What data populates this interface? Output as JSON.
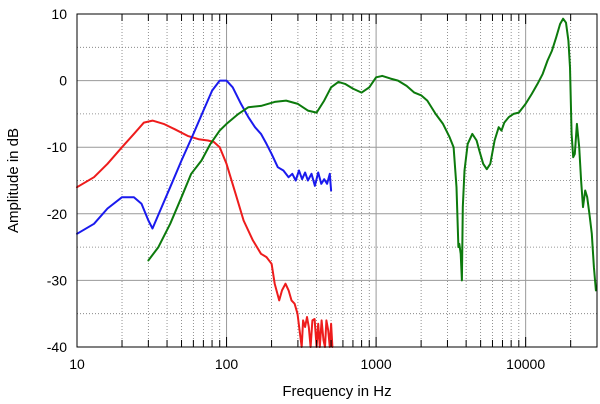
{
  "chart_data": {
    "type": "line",
    "xlabel": "Frequency in Hz",
    "ylabel": "Amplitude in dB",
    "xscale": "log",
    "xlim": [
      10,
      30000
    ],
    "ylim": [
      -40,
      10
    ],
    "grid": true,
    "x_tick_labels": [
      "10",
      "100",
      "1000",
      "10000"
    ],
    "x_tick_values": [
      10,
      100,
      1000,
      10000
    ],
    "y_tick_labels": [
      "10",
      "0",
      "-10",
      "-20",
      "-30",
      "-40"
    ],
    "y_tick_values": [
      10,
      0,
      -10,
      -20,
      -30,
      -40
    ],
    "series": [
      {
        "color": "#ee1c1c",
        "points": [
          [
            10,
            -16
          ],
          [
            13,
            -14.5
          ],
          [
            16,
            -12.5
          ],
          [
            20,
            -10
          ],
          [
            24,
            -8
          ],
          [
            28,
            -6.3
          ],
          [
            32,
            -6
          ],
          [
            38,
            -6.5
          ],
          [
            45,
            -7.3
          ],
          [
            55,
            -8.3
          ],
          [
            65,
            -8.8
          ],
          [
            75,
            -9
          ],
          [
            82,
            -9.2
          ],
          [
            90,
            -10
          ],
          [
            100,
            -12.5
          ],
          [
            115,
            -17
          ],
          [
            130,
            -21
          ],
          [
            150,
            -24
          ],
          [
            170,
            -26
          ],
          [
            185,
            -26.5
          ],
          [
            200,
            -27.5
          ],
          [
            210,
            -30.5
          ],
          [
            225,
            -33
          ],
          [
            235,
            -31.5
          ],
          [
            248,
            -30.5
          ],
          [
            260,
            -31.5
          ],
          [
            272,
            -33
          ],
          [
            285,
            -33.5
          ],
          [
            298,
            -35
          ],
          [
            310,
            -38
          ],
          [
            318,
            -40
          ],
          [
            325,
            -36
          ],
          [
            335,
            -37
          ],
          [
            345,
            -35.5
          ],
          [
            355,
            -37
          ],
          [
            365,
            -40
          ],
          [
            375,
            -36
          ],
          [
            388,
            -35.8
          ],
          [
            400,
            -40
          ],
          [
            410,
            -36.5
          ],
          [
            420,
            -40
          ],
          [
            432,
            -36
          ],
          [
            445,
            -39
          ],
          [
            455,
            -40
          ],
          [
            465,
            -36
          ],
          [
            478,
            -37.5
          ],
          [
            490,
            -40
          ],
          [
            500,
            -36.5
          ],
          [
            510,
            -40
          ]
        ]
      },
      {
        "color": "#1a1aee",
        "points": [
          [
            10,
            -23
          ],
          [
            13,
            -21.5
          ],
          [
            16,
            -19.2
          ],
          [
            20,
            -17.5
          ],
          [
            24,
            -17.5
          ],
          [
            27,
            -18.5
          ],
          [
            30,
            -21
          ],
          [
            32,
            -22.2
          ],
          [
            36,
            -19.5
          ],
          [
            42,
            -16
          ],
          [
            50,
            -12
          ],
          [
            60,
            -8
          ],
          [
            70,
            -4.5
          ],
          [
            80,
            -1.5
          ],
          [
            90,
            0
          ],
          [
            100,
            0
          ],
          [
            110,
            -1
          ],
          [
            125,
            -3.5
          ],
          [
            140,
            -5.5
          ],
          [
            155,
            -7
          ],
          [
            170,
            -8
          ],
          [
            185,
            -9.5
          ],
          [
            200,
            -11
          ],
          [
            220,
            -13
          ],
          [
            240,
            -13.5
          ],
          [
            260,
            -14.5
          ],
          [
            275,
            -14
          ],
          [
            290,
            -15
          ],
          [
            305,
            -13.5
          ],
          [
            320,
            -14.8
          ],
          [
            335,
            -13.8
          ],
          [
            350,
            -15
          ],
          [
            370,
            -14
          ],
          [
            390,
            -15.8
          ],
          [
            410,
            -13.8
          ],
          [
            430,
            -15.5
          ],
          [
            450,
            -14.8
          ],
          [
            470,
            -15.5
          ],
          [
            490,
            -14
          ],
          [
            500,
            -16.5
          ]
        ]
      },
      {
        "color": "#0c7a0c",
        "points": [
          [
            30,
            -27
          ],
          [
            35,
            -25
          ],
          [
            42,
            -21.5
          ],
          [
            50,
            -17.5
          ],
          [
            58,
            -14
          ],
          [
            68,
            -12
          ],
          [
            78,
            -9.5
          ],
          [
            90,
            -7.5
          ],
          [
            100,
            -6.5
          ],
          [
            120,
            -5
          ],
          [
            140,
            -4
          ],
          [
            170,
            -3.8
          ],
          [
            210,
            -3.2
          ],
          [
            250,
            -3
          ],
          [
            300,
            -3.5
          ],
          [
            350,
            -4.5
          ],
          [
            400,
            -4.8
          ],
          [
            450,
            -3
          ],
          [
            500,
            -1
          ],
          [
            560,
            -0.2
          ],
          [
            620,
            -0.5
          ],
          [
            700,
            -1.2
          ],
          [
            800,
            -1.8
          ],
          [
            900,
            -1
          ],
          [
            1000,
            0.5
          ],
          [
            1100,
            0.7
          ],
          [
            1250,
            0.3
          ],
          [
            1400,
            0
          ],
          [
            1600,
            -0.8
          ],
          [
            1800,
            -1.8
          ],
          [
            2000,
            -2.2
          ],
          [
            2200,
            -3
          ],
          [
            2500,
            -5
          ],
          [
            2800,
            -6.5
          ],
          [
            3100,
            -8.5
          ],
          [
            3300,
            -10
          ],
          [
            3450,
            -16
          ],
          [
            3550,
            -25
          ],
          [
            3600,
            -24.5
          ],
          [
            3680,
            -26
          ],
          [
            3750,
            -30
          ],
          [
            3800,
            -19
          ],
          [
            3900,
            -13.5
          ],
          [
            4100,
            -9.5
          ],
          [
            4400,
            -8
          ],
          [
            4700,
            -9
          ],
          [
            4900,
            -10.5
          ],
          [
            5200,
            -12.5
          ],
          [
            5500,
            -13.3
          ],
          [
            5800,
            -12.5
          ],
          [
            6200,
            -9
          ],
          [
            6600,
            -7
          ],
          [
            6900,
            -7.5
          ],
          [
            7200,
            -6.3
          ],
          [
            7700,
            -5.5
          ],
          [
            8300,
            -5
          ],
          [
            9000,
            -4.8
          ],
          [
            10000,
            -3.5
          ],
          [
            11000,
            -2
          ],
          [
            12000,
            -0.5
          ],
          [
            13000,
            1
          ],
          [
            14000,
            3
          ],
          [
            15000,
            4.5
          ],
          [
            16000,
            6.5
          ],
          [
            17000,
            8.5
          ],
          [
            17800,
            9.3
          ],
          [
            18600,
            8.7
          ],
          [
            19300,
            6
          ],
          [
            19800,
            2
          ],
          [
            20300,
            -8
          ],
          [
            20800,
            -11.5
          ],
          [
            21300,
            -11
          ],
          [
            22000,
            -6.5
          ],
          [
            22800,
            -10
          ],
          [
            23500,
            -15
          ],
          [
            24200,
            -19
          ],
          [
            25000,
            -16.5
          ],
          [
            25800,
            -17.5
          ],
          [
            26700,
            -20
          ],
          [
            27700,
            -23
          ],
          [
            28600,
            -28
          ],
          [
            29500,
            -31.5
          ]
        ]
      }
    ]
  }
}
